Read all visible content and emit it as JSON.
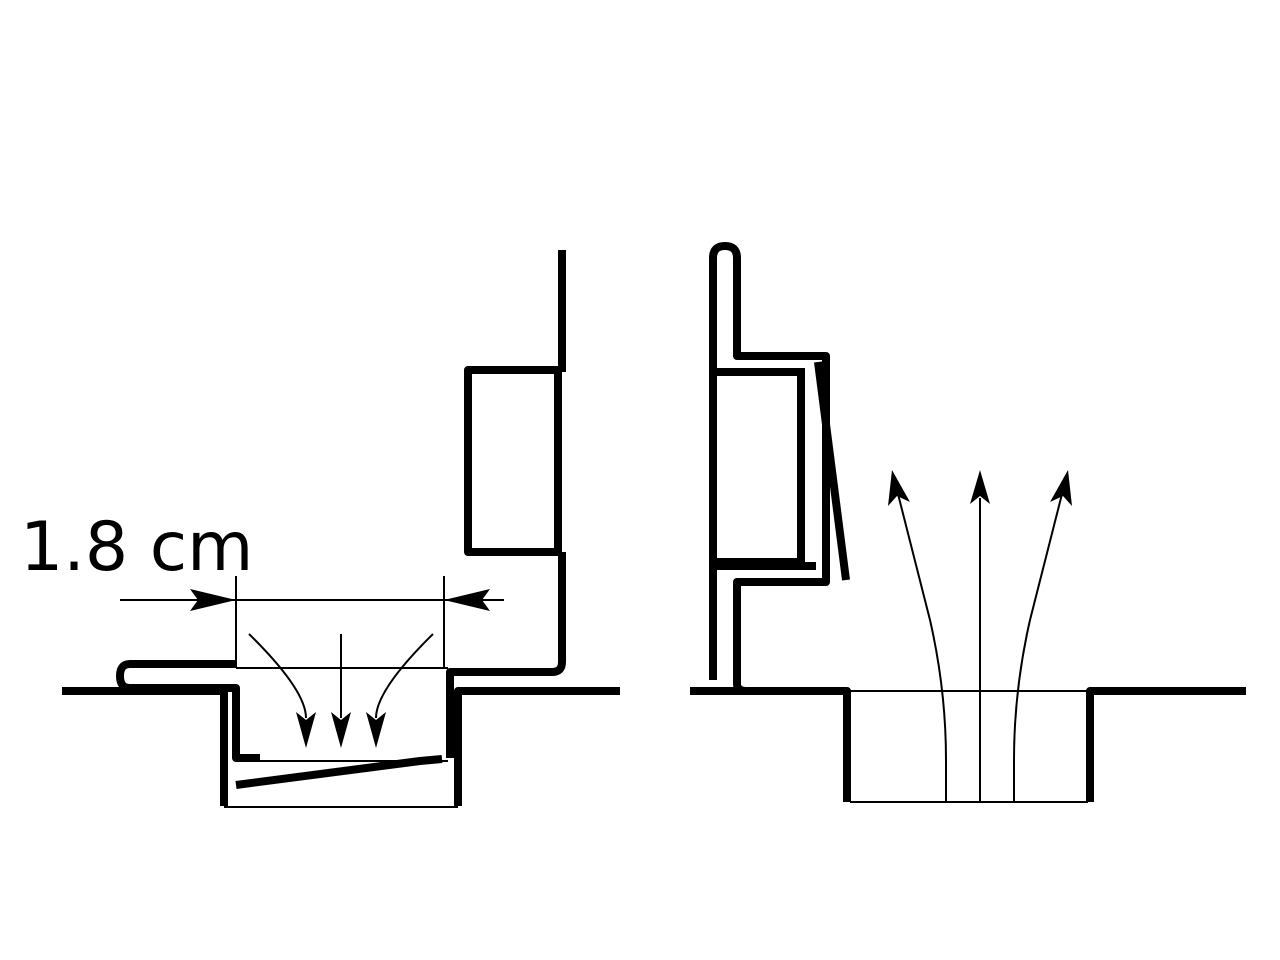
{
  "dimension": {
    "label": "1.8 cm"
  },
  "colors": {
    "ink": "#000000",
    "background": "#ffffff"
  },
  "views": [
    {
      "id": "left",
      "flow": "inflow"
    },
    {
      "id": "right",
      "flow": "outflow"
    }
  ]
}
